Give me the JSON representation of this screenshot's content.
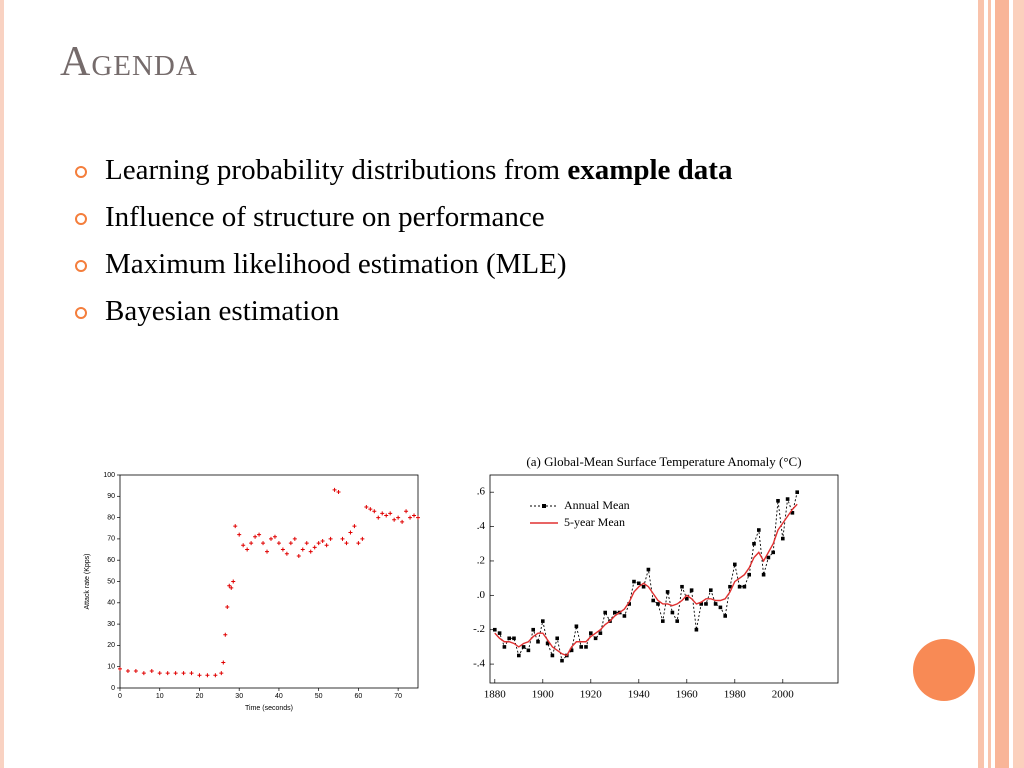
{
  "slide": {
    "title": "Agenda",
    "bullets": [
      {
        "text": "Learning probability distributions from",
        "bold": "example data"
      },
      {
        "text": "Influence of structure on performance"
      },
      {
        "text": "Maximum likelihood estimation (MLE)"
      },
      {
        "text": "Bayesian estimation"
      }
    ]
  },
  "chart_data": [
    {
      "type": "line",
      "xlabel": "Time (seconds)",
      "ylabel": "Attack rate (Kpps)",
      "xlim": [
        0,
        75
      ],
      "ylim": [
        0,
        100
      ],
      "xticks": [
        0,
        10,
        20,
        30,
        40,
        50,
        60,
        70
      ],
      "yticks": [
        0,
        10,
        20,
        30,
        40,
        50,
        60,
        70,
        80,
        90,
        100
      ],
      "x": [
        0,
        2,
        4,
        6,
        8,
        10,
        12,
        14,
        16,
        18,
        20,
        22,
        24,
        25.5,
        26,
        26.5,
        27,
        27.5,
        28,
        28.5,
        29,
        30,
        31,
        32,
        33,
        34,
        35,
        36,
        37,
        38,
        39,
        40,
        41,
        42,
        43,
        44,
        45,
        46,
        47,
        48,
        49,
        50,
        51,
        52,
        53,
        54,
        55,
        56,
        57,
        58,
        59,
        60,
        61,
        62,
        63,
        64,
        65,
        66,
        67,
        68,
        69,
        70,
        71,
        72,
        73,
        74,
        75
      ],
      "series": [
        {
          "color": "#e00000",
          "marker": "+",
          "values": [
            9,
            8,
            8,
            7,
            8,
            7,
            7,
            7,
            7,
            7,
            6,
            6,
            6,
            7,
            12,
            25,
            38,
            48,
            47,
            50,
            76,
            72,
            67,
            65,
            68,
            71,
            72,
            68,
            64,
            70,
            71,
            68,
            65,
            63,
            68,
            70,
            62,
            65,
            68,
            64,
            66,
            68,
            69,
            67,
            70,
            93,
            92,
            70,
            68,
            73,
            76,
            68,
            70,
            85,
            84,
            83,
            80,
            82,
            81,
            82,
            79,
            80,
            78,
            83,
            80,
            81,
            80
          ]
        }
      ]
    },
    {
      "type": "line",
      "title": "(a)  Global-Mean Surface Temperature Anomaly (°C)",
      "xlim": [
        1878,
        2023
      ],
      "ylim": [
        -0.51,
        0.7
      ],
      "xticks": [
        1880,
        1900,
        1920,
        1940,
        1960,
        1980,
        2000
      ],
      "yticks": [
        {
          "value": 0.6,
          "label": ".6"
        },
        {
          "value": 0.4,
          "label": ".4"
        },
        {
          "value": 0.2,
          "label": ".2"
        },
        {
          "value": 0,
          "label": ".0"
        },
        {
          "value": -0.2,
          "label": "-.2"
        },
        {
          "value": -0.4,
          "label": "-.4"
        }
      ],
      "legend": "upper left",
      "x": [
        1880,
        1882,
        1884,
        1886,
        1888,
        1890,
        1892,
        1894,
        1896,
        1898,
        1900,
        1902,
        1904,
        1906,
        1908,
        1910,
        1912,
        1914,
        1916,
        1918,
        1920,
        1922,
        1924,
        1926,
        1928,
        1930,
        1932,
        1934,
        1936,
        1938,
        1940,
        1942,
        1944,
        1946,
        1948,
        1950,
        1952,
        1954,
        1956,
        1958,
        1960,
        1962,
        1964,
        1966,
        1968,
        1970,
        1972,
        1974,
        1976,
        1978,
        1980,
        1982,
        1984,
        1986,
        1988,
        1990,
        1992,
        1994,
        1996,
        1998,
        2000,
        2002,
        2004,
        2006
      ],
      "series": [
        {
          "name": "Annual Mean",
          "color": "#000000",
          "marker": "square",
          "dash": true,
          "values": [
            -0.2,
            -0.22,
            -0.3,
            -0.25,
            -0.25,
            -0.35,
            -0.3,
            -0.32,
            -0.2,
            -0.27,
            -0.15,
            -0.28,
            -0.35,
            -0.25,
            -0.38,
            -0.35,
            -0.32,
            -0.18,
            -0.3,
            -0.3,
            -0.22,
            -0.25,
            -0.22,
            -0.1,
            -0.15,
            -0.1,
            -0.1,
            -0.12,
            -0.05,
            0.08,
            0.07,
            0.05,
            0.15,
            -0.03,
            -0.05,
            -0.15,
            0.02,
            -0.1,
            -0.15,
            0.05,
            -0.02,
            0.03,
            -0.2,
            -0.05,
            -0.05,
            0.03,
            -0.05,
            -0.07,
            -0.12,
            0.05,
            0.18,
            0.05,
            0.05,
            0.12,
            0.3,
            0.38,
            0.12,
            0.22,
            0.25,
            0.55,
            0.33,
            0.56,
            0.48,
            0.6
          ]
        },
        {
          "name": "5-year Mean",
          "color": "#e03030",
          "dash": false,
          "values": [
            -0.22,
            -0.25,
            -0.27,
            -0.27,
            -0.28,
            -0.3,
            -0.28,
            -0.27,
            -0.24,
            -0.22,
            -0.22,
            -0.26,
            -0.3,
            -0.32,
            -0.34,
            -0.35,
            -0.3,
            -0.27,
            -0.27,
            -0.27,
            -0.24,
            -0.22,
            -0.2,
            -0.17,
            -0.15,
            -0.12,
            -0.1,
            -0.08,
            -0.04,
            0.02,
            0.05,
            0.07,
            0.05,
            0.01,
            -0.03,
            -0.05,
            -0.05,
            -0.06,
            -0.05,
            -0.03,
            0,
            -0.02,
            -0.05,
            -0.04,
            -0.02,
            -0.02,
            -0.03,
            -0.03,
            -0.02,
            0.02,
            0.08,
            0.1,
            0.12,
            0.16,
            0.22,
            0.25,
            0.2,
            0.25,
            0.3,
            0.38,
            0.42,
            0.46,
            0.5,
            0.53
          ]
        }
      ]
    }
  ]
}
